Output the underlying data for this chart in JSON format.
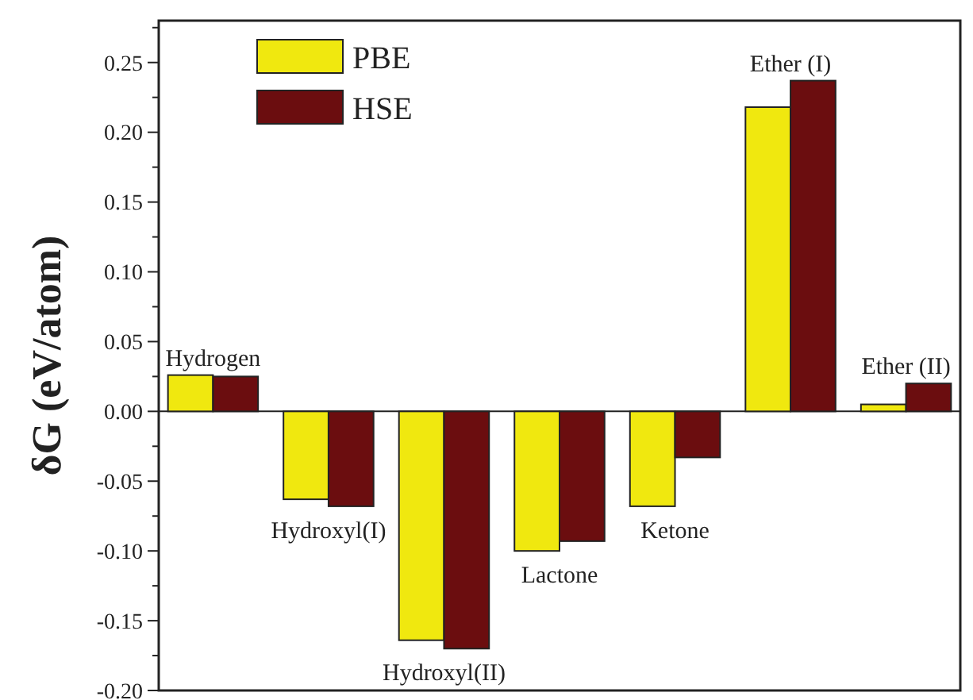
{
  "chart_data": {
    "type": "bar",
    "ylabel": "δG (eV/atom)",
    "categories": [
      "Hydrogen",
      "Hydroxyl(I)",
      "Hydroxyl(II)",
      "Lactone",
      "Ketone",
      "Ether (I)",
      "Ether (II)"
    ],
    "series": [
      {
        "name": "PBE",
        "color": "#f0e80f",
        "values": [
          0.026,
          -0.063,
          -0.164,
          -0.1,
          -0.068,
          0.218,
          0.005
        ]
      },
      {
        "name": "HSE",
        "color": "#6b0d0f",
        "values": [
          0.025,
          -0.068,
          -0.17,
          -0.093,
          -0.033,
          0.237,
          0.02
        ]
      }
    ],
    "ylim": [
      -0.2,
      0.28
    ],
    "yticks": [
      {
        "value": -0.2,
        "label": "-0.20"
      },
      {
        "value": -0.175,
        "label": null
      },
      {
        "value": -0.15,
        "label": "-0.15"
      },
      {
        "value": -0.125,
        "label": null
      },
      {
        "value": -0.1,
        "label": "-0.10"
      },
      {
        "value": -0.075,
        "label": null
      },
      {
        "value": -0.05,
        "label": "-0.05"
      },
      {
        "value": -0.025,
        "label": null
      },
      {
        "value": 0,
        "label": "0.00"
      },
      {
        "value": 0.025,
        "label": null
      },
      {
        "value": 0.05,
        "label": "0.05"
      },
      {
        "value": 0.075,
        "label": null
      },
      {
        "value": 0.1,
        "label": "0.10"
      },
      {
        "value": 0.125,
        "label": null
      },
      {
        "value": 0.15,
        "label": "0.15"
      },
      {
        "value": 0.175,
        "label": null
      },
      {
        "value": 0.2,
        "label": "0.20"
      },
      {
        "value": 0.225,
        "label": null
      },
      {
        "value": 0.25,
        "label": "0.25"
      },
      {
        "value": 0.275,
        "label": null
      }
    ],
    "legend": "top left"
  }
}
